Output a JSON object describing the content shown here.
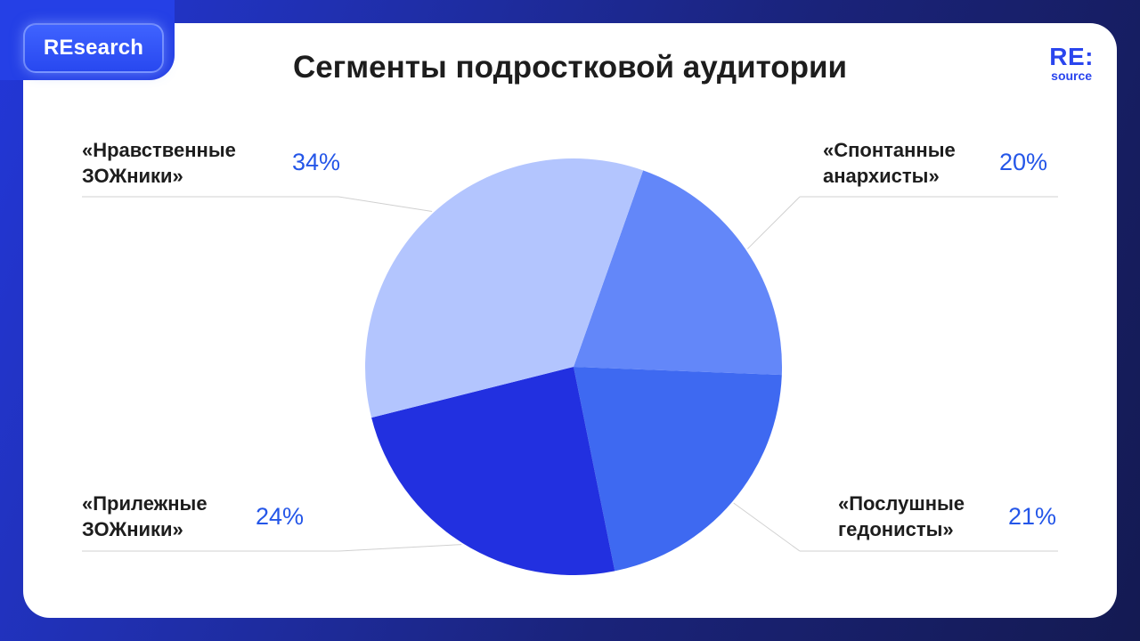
{
  "header": {
    "badge": "REsearch",
    "title": "Сегменты подростковой аудитории",
    "logo_main": "RE:",
    "logo_sub": "source"
  },
  "colors": {
    "background_start": "#2337d8",
    "background_end": "#141a52",
    "accent": "#2456e8",
    "badge": "#2f4ff5"
  },
  "chart_data": {
    "type": "pie",
    "title": "Сегменты подростковой аудитории",
    "slices": [
      {
        "label": "«Спонтанные\nанархисты»",
        "value": 20,
        "value_label": "20%",
        "color": "#6387f9"
      },
      {
        "label": "«Послушные\nгедонисты»",
        "value": 21,
        "value_label": "21%",
        "color": "#3e69f1"
      },
      {
        "label": "«Прилежные\nЗОЖники»",
        "value": 24,
        "value_label": "24%",
        "color": "#2230e0"
      },
      {
        "label": "«Нравственные\nЗОЖники»",
        "value": 34,
        "value_label": "34%",
        "color": "#b3c5fe"
      }
    ]
  }
}
